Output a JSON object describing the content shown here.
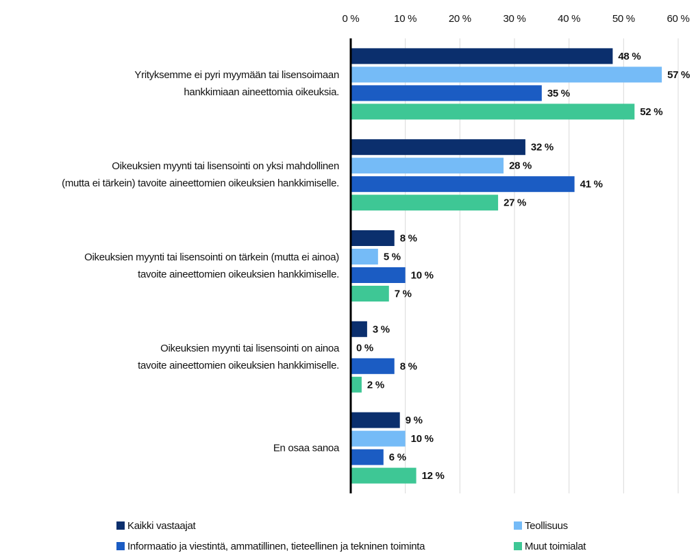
{
  "chart_data": {
    "type": "bar",
    "orientation": "horizontal",
    "categories": [
      "Yrityksemme ei pyri myymään tai lisensoimaan\nhankkimiaan aineettomia oikeuksia.",
      "Oikeuksien myynti tai lisensointi on yksi mahdollinen\n(mutta ei tärkein) tavoite aineettomien oikeuksien hankkimiselle.",
      "Oikeuksien myynti tai lisensointi on tärkein (mutta ei ainoa)\ntavoite aineettomien oikeuksien hankkimiselle.",
      "Oikeuksien myynti tai lisensointi on ainoa\ntavoite aineettomien oikeuksien hankkimiselle.",
      "En osaa sanoa"
    ],
    "series": [
      {
        "name": "Kaikki vastaajat",
        "color": "#0b2f6d",
        "values": [
          48,
          32,
          8,
          3,
          9
        ],
        "value_labels": [
          "48 %",
          "32 %",
          "8 %",
          "3 %",
          "9 %"
        ]
      },
      {
        "name": "Teollisuus",
        "color": "#75bbf7",
        "values": [
          57,
          28,
          5,
          0,
          10
        ],
        "value_labels": [
          "57 %",
          "28 %",
          "5 %",
          "0 %",
          "10 %"
        ]
      },
      {
        "name": "Informaatio ja viestintä, ammatillinen, tieteellinen ja tekninen toiminta",
        "color": "#1b5cc3",
        "values": [
          35,
          41,
          10,
          8,
          6
        ],
        "value_labels": [
          "35 %",
          "41 %",
          "10 %",
          "8 %",
          "6 %"
        ]
      },
      {
        "name": "Muut toimialat",
        "color": "#3ec795",
        "values": [
          52,
          27,
          7,
          2,
          12
        ],
        "value_labels": [
          "52 %",
          "27 %",
          "7 %",
          "2 %",
          "12 %"
        ]
      }
    ],
    "xlim": [
      0,
      60
    ],
    "xticks": [
      {
        "value": 0,
        "label": "0 %"
      },
      {
        "value": 10,
        "label": "10 %"
      },
      {
        "value": 20,
        "label": "20 %"
      },
      {
        "value": 30,
        "label": "30 %"
      },
      {
        "value": 40,
        "label": "40 %"
      },
      {
        "value": 50,
        "label": "50 %"
      },
      {
        "value": 60,
        "label": "60 %"
      }
    ],
    "grid": true,
    "legend": "bottom"
  }
}
